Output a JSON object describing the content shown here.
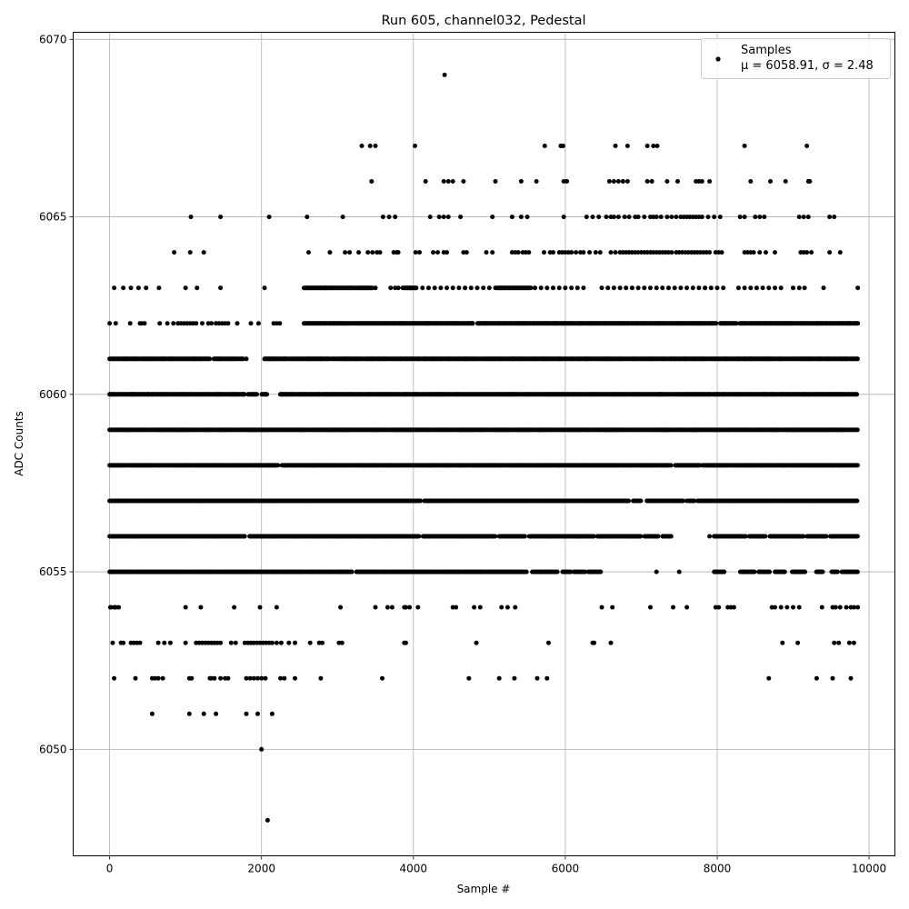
{
  "chart_data": {
    "type": "scatter",
    "title": "Run 605, channel032, Pedestal",
    "xlabel": "Sample #",
    "ylabel": "ADC Counts",
    "xlim": [
      -480,
      10340
    ],
    "ylim": [
      6047,
      6070.2
    ],
    "xticks": [
      0,
      2000,
      4000,
      6000,
      8000,
      10000
    ],
    "yticks": [
      6050,
      6055,
      6060,
      6065,
      6070
    ],
    "grid": true,
    "legend_position": "top-right",
    "series": [
      {
        "name": "Samples",
        "stats_label": "μ = 6058.91, σ = 2.48",
        "mean": 6058.91,
        "sigma": 2.48,
        "color": "#000000",
        "n_samples": 9850,
        "x_range": [
          0,
          9850
        ],
        "levels": [
          {
            "y": 6048,
            "x": [
              2080
            ]
          },
          {
            "y": 6050,
            "x": [
              2000
            ]
          },
          {
            "y": 6051,
            "x": [
              560,
              1050,
              1240,
              1400,
              1800,
              1950,
              2140
            ]
          },
          {
            "y": 6052,
            "x": [
              60,
              340,
              560,
              600,
              640,
              700,
              1050,
              1080,
              1320,
              1340,
              1380,
              1460,
              1520,
              1560,
              1800,
              1850,
              1900,
              1950,
              2000,
              2050,
              2250,
              2300,
              2440,
              2780,
              3590,
              4730,
              5130,
              5330,
              5630,
              5760,
              8680,
              9310,
              9520,
              9760
            ]
          },
          {
            "y": 6053,
            "x": [
              40,
              150,
              180,
              280,
              320,
              360,
              400,
              640,
              720,
              800,
              1000,
              1140,
              1180,
              1220,
              1260,
              1300,
              1340,
              1380,
              1420,
              1460,
              1600,
              1660,
              1780,
              1820,
              1860,
              1900,
              1940,
              1980,
              2020,
              2060,
              2100,
              2140,
              2200,
              2260,
              2360,
              2440,
              2640,
              2760,
              2800,
              3020,
              3060,
              3880,
              3900,
              4830,
              5780,
              6360,
              6380,
              6600,
              8860,
              9060,
              9540,
              9600,
              9740,
              9800
            ]
          },
          {
            "y": 6054,
            "x": [
              10,
              20,
              60,
              80,
              120,
              1000,
              1200,
              1640,
              1980,
              2200,
              3040,
              3500,
              3660,
              3720,
              3880,
              3900,
              3950,
              4060,
              4520,
              4560,
              4800,
              4880,
              5160,
              5240,
              5340,
              6480,
              6620,
              7120,
              7420,
              7600,
              7980,
              8020,
              8140,
              8180,
              8220,
              8720,
              8760,
              8840,
              8920,
              9000,
              9080,
              9380,
              9520,
              9560,
              9620,
              9700,
              9760,
              9800,
              9850
            ]
          },
          {
            "y": 6055,
            "x": [
              40,
              90,
              7200,
              7500,
              8460,
              9050
            ]
          },
          {
            "y": 6056,
            "x": [
              7900,
              7960,
              9000
            ]
          },
          {
            "y": 6057,
            "x": [
              6820,
              7600
            ]
          },
          {
            "y": 6058,
            "x": [
              7760,
              8100
            ]
          },
          {
            "y": 6059,
            "x": [
              2240
            ]
          },
          {
            "y": 6060,
            "x": [
              1760,
              2050,
              2070
            ]
          },
          {
            "y": 6061,
            "x": [
              1800,
              2040
            ]
          },
          {
            "y": 6062,
            "x": [
              0,
              80,
              270,
              400,
              420,
              460,
              660,
              760,
              840,
              900,
              940,
              980,
              1020,
              1060,
              1100,
              1140,
              1220,
              1300,
              1340,
              1400,
              1440,
              1480,
              1520,
              1560,
              1680,
              1860,
              1960,
              2160,
              2200,
              2240,
              4780,
              8900,
              9850
            ]
          },
          {
            "y": 6063,
            "x": [
              60,
              180,
              280,
              380,
              480,
              650,
              1000,
              1150,
              1460,
              2040,
              3500,
              3700,
              3760,
              3800,
              4120,
              4200,
              4280,
              4360,
              4440,
              4520,
              4600,
              4680,
              4760,
              4840,
              4920,
              5000,
              5080,
              5600,
              5680,
              5760,
              5840,
              5920,
              6000,
              6080,
              6160,
              6240,
              6480,
              6560,
              6640,
              6720,
              6800,
              6880,
              6960,
              7040,
              7120,
              7200,
              7280,
              7360,
              7440,
              7520,
              7600,
              7680,
              7760,
              7840,
              7920,
              8000,
              8080,
              8280,
              8360,
              8440,
              8520,
              8600,
              8680,
              8760,
              8840,
              9000,
              9080,
              9150,
              9400,
              9850
            ]
          },
          {
            "y": 6064,
            "x": [
              850,
              1060,
              1240,
              2620,
              2900,
              3100,
              3160,
              3280,
              3400,
              3460,
              3520,
              3560,
              3740,
              3780,
              3800,
              4030,
              4080,
              4260,
              4320,
              4400,
              4440,
              4660,
              4700,
              4960,
              5040,
              5300,
              5340,
              5380,
              5440,
              5480,
              5520,
              5720,
              5800,
              5840,
              5920,
              5960,
              6000,
              6040,
              6080,
              6140,
              6200,
              6240,
              6320,
              6400,
              6460,
              6600,
              6660,
              6720,
              6760,
              6800,
              6840,
              6880,
              6920,
              6960,
              7000,
              7040,
              7080,
              7120,
              7160,
              7200,
              7240,
              7280,
              7320,
              7360,
              7400,
              7460,
              7500,
              7540,
              7580,
              7620,
              7660,
              7700,
              7740,
              7780,
              7820,
              7860,
              7900,
              7980,
              8020,
              8060,
              8360,
              8400,
              8440,
              8480,
              8560,
              8640,
              8760,
              9100,
              9140,
              9180,
              9240,
              9480,
              9620
            ]
          },
          {
            "y": 6065,
            "x": [
              1070,
              1460,
              2100,
              2600,
              3070,
              3600,
              3680,
              3760,
              4220,
              4340,
              4400,
              4460,
              4620,
              5040,
              5300,
              5420,
              5500,
              5980,
              6280,
              6360,
              6440,
              6540,
              6600,
              6640,
              6700,
              6780,
              6840,
              6920,
              6960,
              7040,
              7120,
              7160,
              7200,
              7260,
              7340,
              7400,
              7460,
              7520,
              7560,
              7600,
              7640,
              7680,
              7720,
              7760,
              7800,
              7880,
              7960,
              8040,
              8300,
              8360,
              8500,
              8560,
              8620,
              9080,
              9140,
              9200,
              9480,
              9540
            ]
          },
          {
            "y": 6066,
            "x": [
              3450,
              4160,
              4400,
              4460,
              4520,
              4660,
              5080,
              5420,
              5620,
              5980,
              6020,
              6580,
              6640,
              6700,
              6760,
              6820,
              7080,
              7140,
              7340,
              7480,
              7720,
              7760,
              7800,
              7900,
              8440,
              8700,
              8900,
              9200,
              9220
            ]
          },
          {
            "y": 6067,
            "x": [
              3320,
              3430,
              3500,
              4020,
              5730,
              5940,
              5970,
              6660,
              6820,
              7080,
              7160,
              7210,
              8360,
              9180
            ]
          },
          {
            "y": 6069,
            "x": [
              4410
            ]
          }
        ],
        "dense_levels": [
          {
            "y": 6055,
            "x_end": 6480,
            "gaps": [
              [
                3200,
                3240
              ],
              [
                5500,
                5560
              ],
              [
                5900,
                5960
              ],
              [
                6080,
                6100
              ],
              [
                6260,
                6300
              ]
            ]
          },
          {
            "y": 6055,
            "x_start": 7960,
            "x_end": 9850,
            "gaps": [
              [
                8100,
                8300
              ],
              [
                8500,
                8540
              ],
              [
                8700,
                8760
              ],
              [
                8900,
                8980
              ],
              [
                9160,
                9300
              ],
              [
                9400,
                9500
              ],
              [
                9600,
                9640
              ]
            ]
          },
          {
            "y": 6056,
            "x_end": 7400,
            "gaps": [
              [
                1780,
                1840
              ],
              [
                4080,
                4120
              ],
              [
                5080,
                5120
              ],
              [
                5480,
                5520
              ],
              [
                6380,
                6420
              ],
              [
                7000,
                7040
              ],
              [
                7240,
                7280
              ]
            ]
          },
          {
            "y": 6056,
            "x_start": 7960,
            "x_end": 9850,
            "gaps": [
              [
                8380,
                8420
              ],
              [
                8640,
                8680
              ],
              [
                9140,
                9180
              ],
              [
                9440,
                9480
              ]
            ]
          },
          {
            "y": 6057,
            "x_end": 9850,
            "gaps": [
              [
                4100,
                4140
              ],
              [
                6840,
                6880
              ],
              [
                7000,
                7060
              ],
              [
                7560,
                7620
              ],
              [
                7700,
                7740
              ]
            ]
          },
          {
            "y": 6058,
            "x_end": 9850,
            "gaps": [
              [
                2220,
                2260
              ],
              [
                7400,
                7440
              ],
              [
                7780,
                7800
              ]
            ]
          },
          {
            "y": 6059,
            "x_end": 9850,
            "gaps": []
          },
          {
            "y": 6060,
            "x_end": 9850,
            "gaps": [
              [
                1780,
                1820
              ],
              [
                1940,
                2000
              ],
              [
                2060,
                2240
              ]
            ]
          },
          {
            "y": 6061,
            "x_end": 1760,
            "gaps": [
              [
                1320,
                1360
              ]
            ]
          },
          {
            "y": 6061,
            "x_start": 2050,
            "x_end": 9850,
            "gaps": [
              [
                2900,
                2920
              ]
            ]
          },
          {
            "y": 6062,
            "x_start": 2560,
            "x_end": 9850,
            "gaps": [
              [
                4780,
                4840
              ],
              [
                8000,
                8040
              ],
              [
                8260,
                8300
              ]
            ]
          },
          {
            "y": 6063,
            "x_start": 2560,
            "x_end": 3460,
            "gaps": []
          },
          {
            "y": 6063,
            "x_start": 3860,
            "x_end": 4040,
            "gaps": []
          },
          {
            "y": 6063,
            "x_start": 5100,
            "x_end": 5560,
            "gaps": []
          }
        ]
      }
    ]
  }
}
